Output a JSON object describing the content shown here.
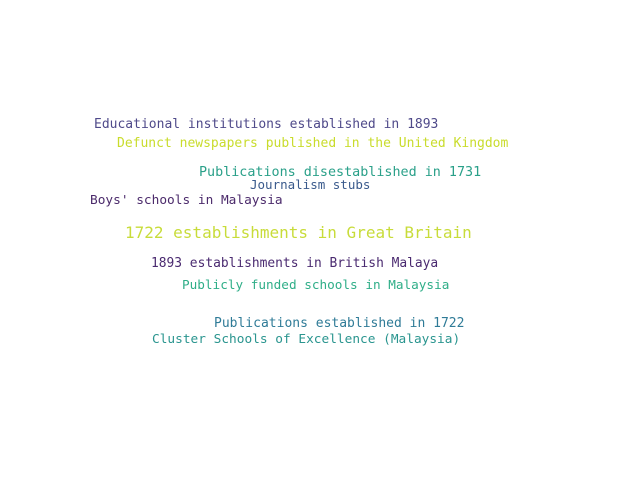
{
  "word_cloud": {
    "words": [
      {
        "text": "Educational institutions established in 1893",
        "color": "#4f4a8a"
      },
      {
        "text": "Defunct newspapers published in the United Kingdom",
        "color": "#c9dc2c"
      },
      {
        "text": "Publications disestablished in 1731",
        "color": "#2aa089"
      },
      {
        "text": "Journalism stubs",
        "color": "#3a5a8c"
      },
      {
        "text": "Boys' schools in Malaysia",
        "color": "#4b2a6b"
      },
      {
        "text": "1722 establishments in Great Britain",
        "color": "#c8dc3a"
      },
      {
        "text": "1893 establishments in British Malaya",
        "color": "#4a2a70"
      },
      {
        "text": "Publicly funded schools in Malaysia",
        "color": "#2fae88"
      },
      {
        "text": "Publications established in 1722",
        "color": "#2f7b97"
      },
      {
        "text": "Cluster Schools of Excellence (Malaysia)",
        "color": "#2a958f"
      }
    ]
  }
}
